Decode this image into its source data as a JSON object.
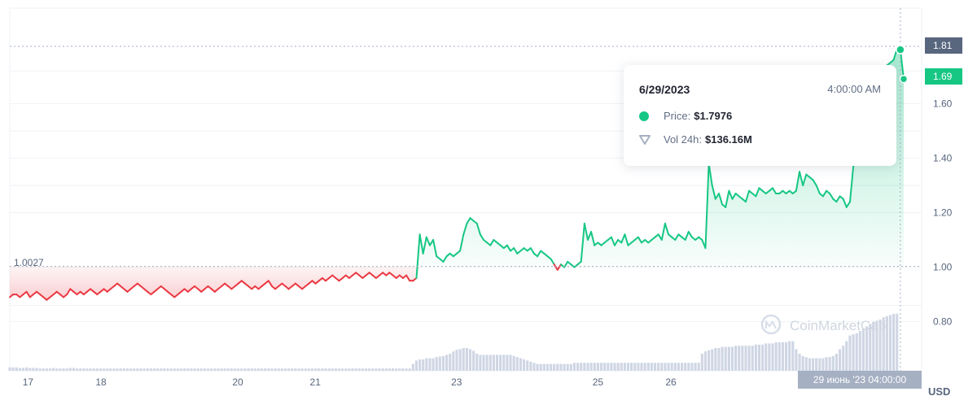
{
  "chart_data": {
    "type": "line",
    "x_tick_labels": [
      "17",
      "18",
      "20",
      "21",
      "23",
      "25",
      "26"
    ],
    "y_tick_labels": [
      "1.60",
      "1.40",
      "1.20",
      "1.00",
      "0.80"
    ],
    "y_unit": "USD",
    "ylim": [
      0.62,
      1.95
    ],
    "baseline": 1.0027,
    "baseline_label": "1.0027",
    "current_price_label": "1.69",
    "hover_price_label": "1.81",
    "grid": true,
    "watermark": "CoinMarketCap",
    "x_hover_label": "29 июнь '23   04:00:00",
    "series": [
      {
        "values": [
          0.89,
          0.9,
          0.9,
          0.89,
          0.9,
          0.91,
          0.89,
          0.9,
          0.91,
          0.9,
          0.89,
          0.88,
          0.89,
          0.9,
          0.91,
          0.9,
          0.89,
          0.9,
          0.92,
          0.91,
          0.9,
          0.91,
          0.9,
          0.91,
          0.92,
          0.91,
          0.9,
          0.91,
          0.92,
          0.91,
          0.92,
          0.93,
          0.94,
          0.93,
          0.92,
          0.91,
          0.92,
          0.93,
          0.94,
          0.93,
          0.92,
          0.91,
          0.9,
          0.91,
          0.92,
          0.93,
          0.92,
          0.91,
          0.9,
          0.89,
          0.9,
          0.91,
          0.92,
          0.91,
          0.92,
          0.93,
          0.92,
          0.91,
          0.92,
          0.93,
          0.92,
          0.91,
          0.92,
          0.93,
          0.94,
          0.93,
          0.92,
          0.93,
          0.94,
          0.95,
          0.94,
          0.93,
          0.92,
          0.93,
          0.92,
          0.93,
          0.94,
          0.95,
          0.93,
          0.92,
          0.93,
          0.94,
          0.93,
          0.92,
          0.93,
          0.94,
          0.93,
          0.92,
          0.93,
          0.94,
          0.95,
          0.94,
          0.95,
          0.96,
          0.95,
          0.96,
          0.97,
          0.96,
          0.95,
          0.96,
          0.97,
          0.96,
          0.97,
          0.98,
          0.97,
          0.96,
          0.97,
          0.98,
          0.97,
          0.96,
          0.97,
          0.98,
          0.97,
          0.98,
          0.97,
          0.96,
          0.97,
          0.96,
          0.97,
          0.95,
          0.95,
          0.96,
          1.12,
          1.05,
          1.11,
          1.08,
          1.1,
          1.04,
          1.03,
          1.02,
          1.04,
          1.05,
          1.04,
          1.05,
          1.06,
          1.12,
          1.16,
          1.18,
          1.17,
          1.16,
          1.12,
          1.1,
          1.09,
          1.08,
          1.1,
          1.09,
          1.08,
          1.07,
          1.08,
          1.06,
          1.07,
          1.05,
          1.06,
          1.07,
          1.06,
          1.07,
          1.05,
          1.04,
          1.06,
          1.05,
          1.04,
          1.03,
          1.01,
          0.99,
          1.01,
          1.0,
          1.02,
          1.01,
          1.0,
          1.01,
          1.02,
          1.16,
          1.1,
          1.13,
          1.08,
          1.09,
          1.08,
          1.09,
          1.1,
          1.11,
          1.08,
          1.1,
          1.09,
          1.12,
          1.08,
          1.09,
          1.1,
          1.11,
          1.09,
          1.1,
          1.09,
          1.1,
          1.11,
          1.12,
          1.1,
          1.16,
          1.12,
          1.11,
          1.1,
          1.12,
          1.11,
          1.1,
          1.13,
          1.11,
          1.1,
          1.11,
          1.1,
          1.07,
          1.38,
          1.3,
          1.25,
          1.27,
          1.23,
          1.22,
          1.28,
          1.25,
          1.27,
          1.26,
          1.25,
          1.24,
          1.28,
          1.27,
          1.26,
          1.29,
          1.28,
          1.27,
          1.28,
          1.29,
          1.27,
          1.27,
          1.28,
          1.27,
          1.28,
          1.27,
          1.28,
          1.35,
          1.3,
          1.34,
          1.33,
          1.32,
          1.3,
          1.27,
          1.26,
          1.28,
          1.27,
          1.25,
          1.24,
          1.26,
          1.25,
          1.22,
          1.24,
          1.37,
          1.4,
          1.39,
          1.5,
          1.55,
          1.58,
          1.62,
          1.66,
          1.7,
          1.72,
          1.74,
          1.75,
          1.76,
          1.8,
          1.7976,
          1.69
        ]
      }
    ],
    "volume": [
      0.06,
      0.06,
      0.06,
      0.05,
      0.05,
      0.06,
      0.05,
      0.05,
      0.05,
      0.04,
      0.04,
      0.04,
      0.04,
      0.05,
      0.04,
      0.04,
      0.04,
      0.04,
      0.05,
      0.05,
      0.04,
      0.04,
      0.04,
      0.04,
      0.04,
      0.04,
      0.04,
      0.04,
      0.04,
      0.04,
      0.04,
      0.04,
      0.04,
      0.04,
      0.04,
      0.04,
      0.04,
      0.04,
      0.04,
      0.04,
      0.04,
      0.04,
      0.04,
      0.04,
      0.04,
      0.04,
      0.04,
      0.04,
      0.04,
      0.04,
      0.04,
      0.04,
      0.04,
      0.04,
      0.04,
      0.04,
      0.04,
      0.04,
      0.04,
      0.04,
      0.04,
      0.04,
      0.04,
      0.04,
      0.04,
      0.04,
      0.04,
      0.04,
      0.04,
      0.04,
      0.04,
      0.04,
      0.04,
      0.04,
      0.04,
      0.04,
      0.04,
      0.04,
      0.04,
      0.04,
      0.04,
      0.04,
      0.04,
      0.04,
      0.04,
      0.04,
      0.04,
      0.04,
      0.04,
      0.04,
      0.04,
      0.04,
      0.04,
      0.04,
      0.04,
      0.04,
      0.04,
      0.04,
      0.04,
      0.04,
      0.04,
      0.04,
      0.04,
      0.04,
      0.04,
      0.04,
      0.04,
      0.04,
      0.04,
      0.04,
      0.04,
      0.04,
      0.04,
      0.04,
      0.04,
      0.04,
      0.04,
      0.04,
      0.04,
      0.04,
      0.12,
      0.18,
      0.2,
      0.2,
      0.22,
      0.22,
      0.22,
      0.24,
      0.25,
      0.26,
      0.28,
      0.3,
      0.34,
      0.37,
      0.38,
      0.4,
      0.4,
      0.38,
      0.35,
      0.3,
      0.28,
      0.28,
      0.28,
      0.28,
      0.28,
      0.28,
      0.28,
      0.28,
      0.28,
      0.28,
      0.26,
      0.24,
      0.22,
      0.2,
      0.18,
      0.16,
      0.14,
      0.12,
      0.12,
      0.12,
      0.12,
      0.12,
      0.12,
      0.12,
      0.12,
      0.12,
      0.12,
      0.12,
      0.14,
      0.14,
      0.14,
      0.14,
      0.14,
      0.14,
      0.14,
      0.14,
      0.14,
      0.14,
      0.14,
      0.14,
      0.14,
      0.14,
      0.14,
      0.14,
      0.14,
      0.14,
      0.14,
      0.14,
      0.14,
      0.14,
      0.14,
      0.14,
      0.14,
      0.14,
      0.14,
      0.14,
      0.14,
      0.14,
      0.14,
      0.14,
      0.14,
      0.14,
      0.14,
      0.14,
      0.14,
      0.14,
      0.3,
      0.34,
      0.36,
      0.38,
      0.4,
      0.4,
      0.42,
      0.42,
      0.42,
      0.42,
      0.44,
      0.44,
      0.44,
      0.44,
      0.44,
      0.44,
      0.46,
      0.46,
      0.46,
      0.48,
      0.48,
      0.48,
      0.5,
      0.5,
      0.5,
      0.5,
      0.52,
      0.52,
      0.38,
      0.3,
      0.26,
      0.24,
      0.22,
      0.22,
      0.22,
      0.22,
      0.22,
      0.24,
      0.24,
      0.26,
      0.3,
      0.38,
      0.44,
      0.52,
      0.62,
      0.64,
      0.66,
      0.7,
      0.74,
      0.78,
      0.82,
      0.86,
      0.88,
      0.9,
      0.94,
      0.96,
      0.98,
      1.0,
      1.0
    ]
  },
  "tooltip": {
    "date": "6/29/2023",
    "time": "4:00:00 AM",
    "price_label": "Price:",
    "price_value": "$1.7976",
    "vol_label": "Vol 24h:",
    "vol_value": "$136.16M"
  },
  "colors": {
    "up": "#16c784",
    "down": "#ea3943",
    "grid": "#eff2f5",
    "axis_text": "#58667e",
    "volume": "#cfd6e4",
    "hover_badge": "#58667e"
  }
}
